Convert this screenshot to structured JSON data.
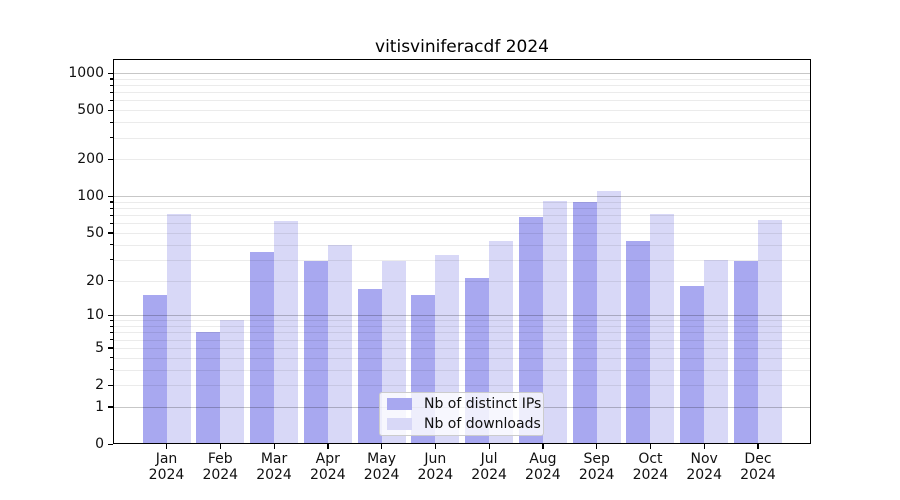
{
  "title": "vitisviniferacdf 2024",
  "chart_data": {
    "type": "bar",
    "title": "vitisviniferacdf 2024",
    "categories": [
      "Jan",
      "Feb",
      "Mar",
      "Apr",
      "May",
      "Jun",
      "Jul",
      "Aug",
      "Sep",
      "Oct",
      "Nov",
      "Dec"
    ],
    "year_label": "2024",
    "series": [
      {
        "name": "Nb of distinct IPs",
        "color": "#a8a8f0",
        "values": [
          15,
          7,
          35,
          29,
          17,
          15,
          21,
          67,
          90,
          43,
          18,
          29
        ]
      },
      {
        "name": "Nb of downloads",
        "color": "#d8d8f7",
        "values": [
          72,
          9,
          63,
          40,
          29,
          33,
          43,
          91,
          110,
          72,
          30,
          64
        ]
      }
    ],
    "yticks": [
      0,
      1,
      2,
      5,
      10,
      20,
      50,
      100,
      200,
      500,
      1000
    ],
    "scale": "log1p",
    "ylim": [
      0,
      1300
    ],
    "grid": true,
    "grid_major_at": [
      1,
      10,
      100,
      1000
    ],
    "legend_position": "lower center",
    "xlabel": "",
    "ylabel": ""
  }
}
